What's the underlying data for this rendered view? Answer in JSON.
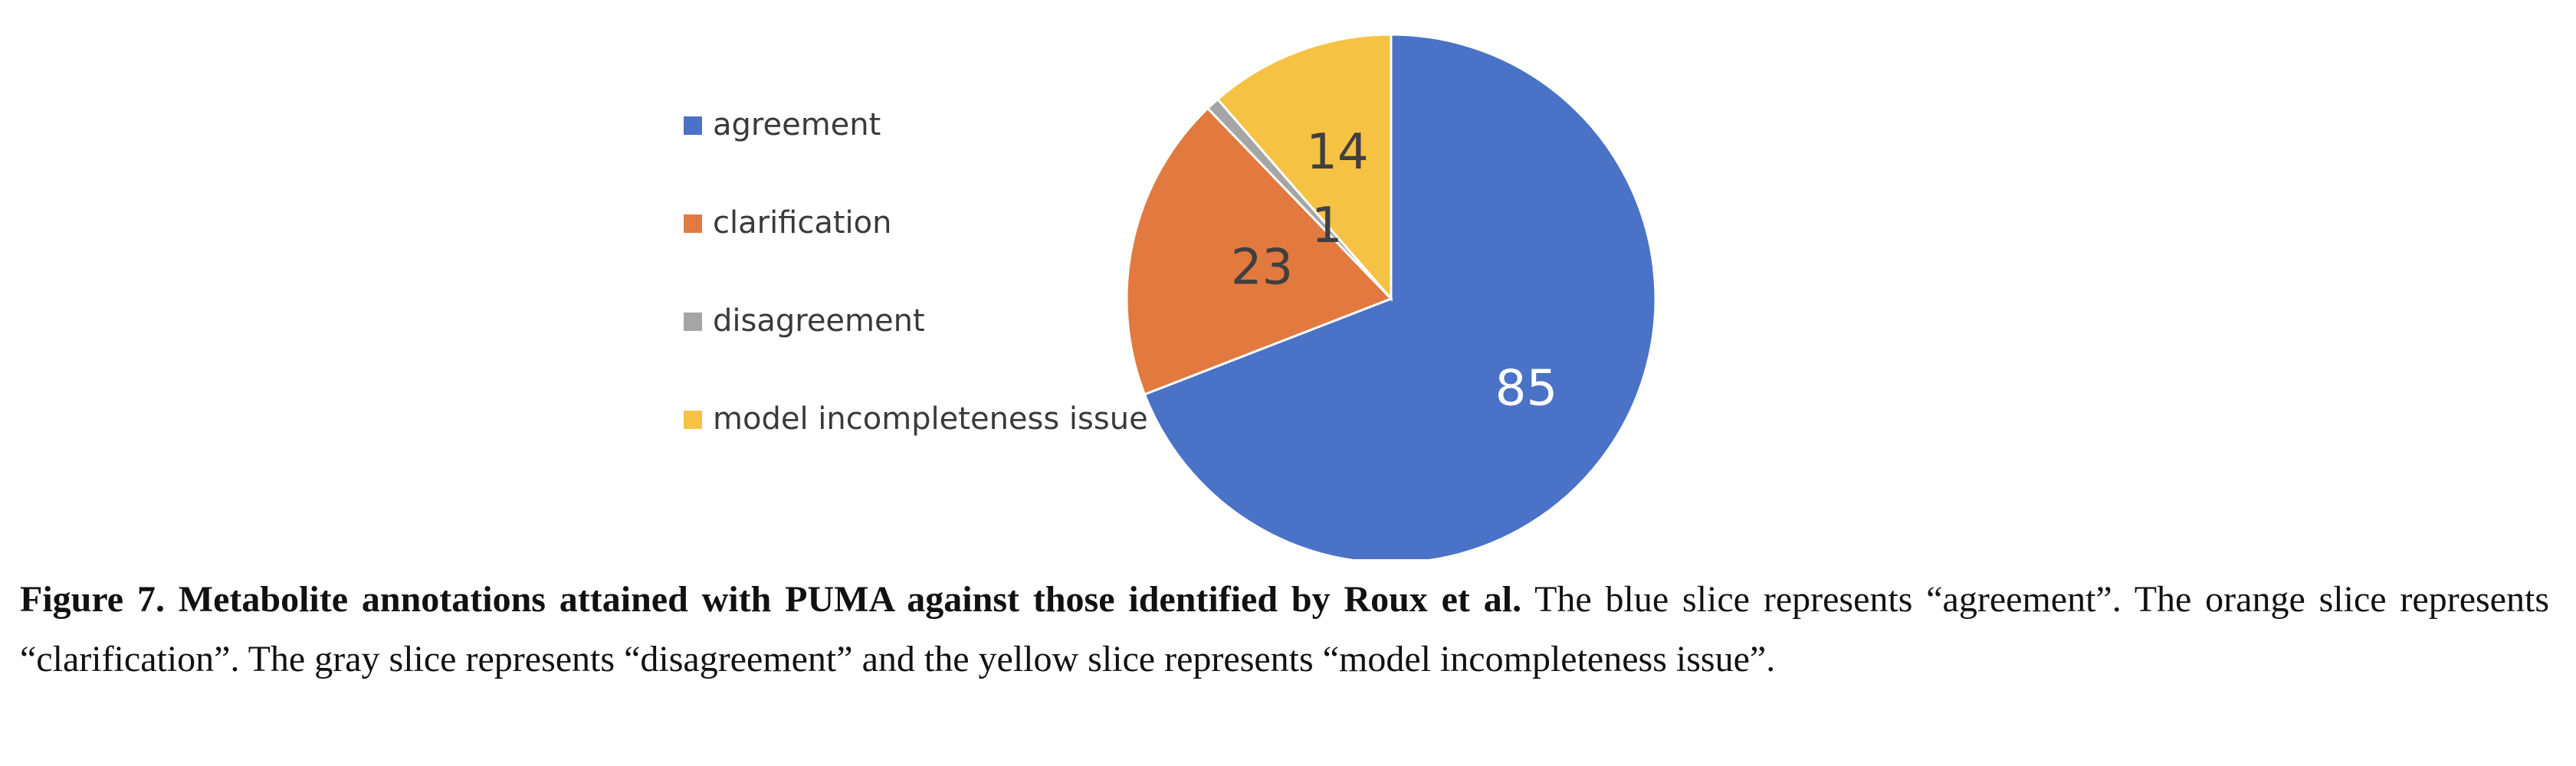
{
  "chart_data": {
    "type": "pie",
    "slices": [
      {
        "label": "agreement",
        "value": 85,
        "color": "#4A72C6",
        "label_color": "#ffffff"
      },
      {
        "label": "clarification",
        "value": 23,
        "color": "#E2793F",
        "label_color": "#404040"
      },
      {
        "label": "disagreement",
        "value": 1,
        "color": "#A5A5A5",
        "label_color": "#404040"
      },
      {
        "label": "model incompleteness issue",
        "value": 14,
        "color": "#F6C243",
        "label_color": "#404040"
      }
    ],
    "start": "12 o'clock",
    "direction": "clockwise",
    "legend_position": "left"
  },
  "caption": {
    "bold": "Figure 7. Metabolite annotations attained with PUMA against those identified by Roux et al.",
    "text": " The blue slice represents “agreement”. The orange slice represents “clarification”. The gray slice represents “disagreement” and the yellow slice represents “model incompleteness issue”."
  }
}
